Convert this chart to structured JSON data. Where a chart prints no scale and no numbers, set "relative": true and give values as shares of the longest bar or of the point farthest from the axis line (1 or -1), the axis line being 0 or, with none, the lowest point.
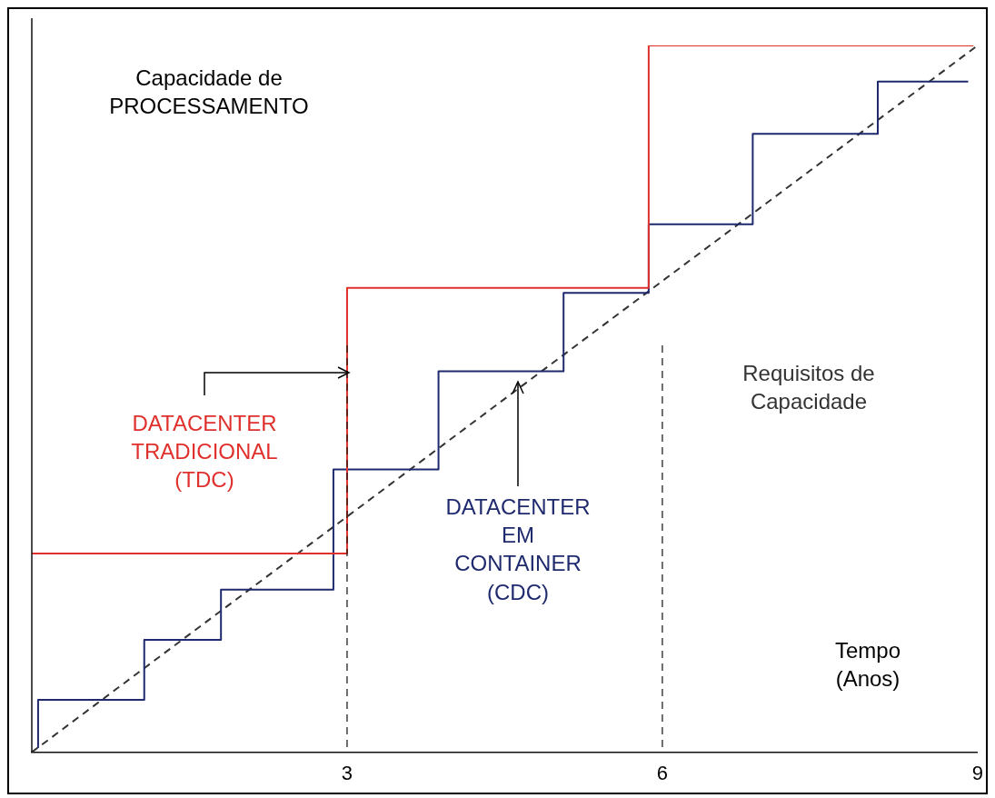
{
  "chart_data": {
    "type": "step",
    "relative": true,
    "ylabel": "Capacidade de PROCESSAMENTO",
    "xlabel": "Tempo (Anos)",
    "xlim": [
      0,
      9
    ],
    "xticks": [
      3,
      6,
      9
    ],
    "series": [
      {
        "name": "DATACENTER TRADICIONAL (TDC)",
        "type": "step",
        "color": "#e0302c",
        "x": [
          0,
          3,
          5.87,
          8.96
        ],
        "values": [
          0.281,
          0.657,
          1,
          1
        ]
      },
      {
        "name": "DATACENTER EM CONTAINER (CDC)",
        "type": "step",
        "color": "#1f2a6e",
        "x": [
          0.06,
          0.06,
          1.07,
          1.8,
          2.87,
          3.87,
          5.06,
          5.87,
          6.86,
          8.05,
          8.91
        ],
        "values": [
          0.006,
          0.074,
          0.159,
          0.23,
          0.4,
          0.539,
          0.65,
          0.747,
          0.875,
          0.949,
          0.949
        ]
      },
      {
        "name": "Requisitos de Capacidade",
        "type": "line",
        "color": "#333333",
        "line_style": "dashed",
        "x": [
          0,
          9
        ],
        "values": [
          0,
          1
        ]
      }
    ],
    "ref_lines": [
      {
        "axis": "x",
        "value": 3,
        "line_style": "dashed",
        "color": "#111111"
      },
      {
        "axis": "x",
        "value": 6,
        "line_style": "dashed",
        "color": "#111111"
      }
    ]
  }
}
